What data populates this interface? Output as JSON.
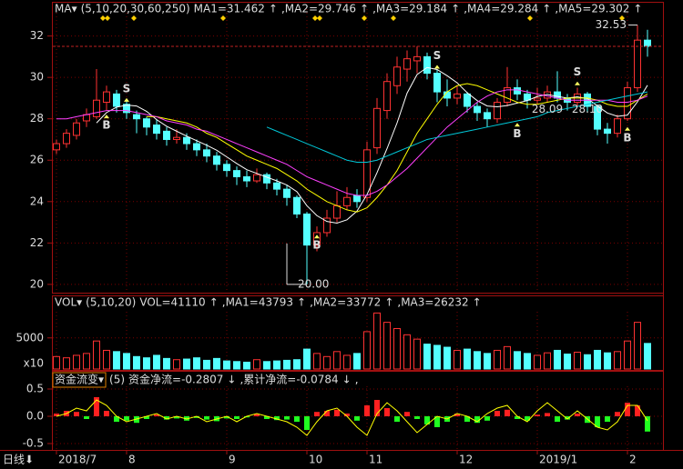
{
  "chart_data": {
    "type": "candlestick",
    "period_label": "日线⬇",
    "categories": [
      "2018/7",
      null,
      null,
      null,
      null,
      null,
      null,
      "8",
      null,
      null,
      null,
      null,
      null,
      null,
      null,
      null,
      null,
      "9",
      null,
      null,
      null,
      null,
      null,
      null,
      null,
      "10",
      null,
      null,
      null,
      null,
      null,
      "11",
      null,
      null,
      null,
      null,
      null,
      null,
      null,
      null,
      "12",
      null,
      null,
      null,
      null,
      null,
      null,
      null,
      "2019/1",
      null,
      null,
      null,
      null,
      null,
      null,
      null,
      null,
      "2",
      null,
      null
    ],
    "open": [
      26.5,
      26.8,
      27.2,
      27.9,
      28.1,
      28.8,
      29.2,
      28.7,
      28.2,
      28.0,
      27.7,
      27.4,
      27.0,
      27.1,
      26.8,
      26.5,
      26.2,
      25.8,
      25.5,
      25.2,
      25.0,
      25.3,
      24.9,
      24.6,
      24.2,
      23.4,
      21.9,
      22.5,
      23.2,
      23.8,
      24.3,
      24.2,
      26.6,
      28.4,
      29.6,
      30.4,
      30.8,
      31.0,
      30.2,
      29.3,
      29.0,
      29.2,
      28.6,
      28.3,
      28.0,
      28.8,
      29.5,
      29.2,
      28.9,
      29.0,
      29.3,
      29.0,
      28.8,
      29.2,
      28.6,
      27.5,
      27.3,
      28.0,
      29.5,
      31.8
    ],
    "high": [
      27.0,
      27.5,
      28.0,
      28.5,
      30.4,
      29.6,
      29.4,
      28.9,
      28.4,
      28.1,
      28.0,
      27.6,
      27.5,
      27.3,
      27.0,
      26.8,
      26.4,
      26.0,
      25.7,
      25.5,
      25.6,
      25.4,
      25.1,
      24.8,
      24.3,
      23.5,
      22.8,
      23.6,
      24.5,
      24.7,
      24.6,
      26.9,
      29.0,
      30.2,
      31.0,
      31.3,
      31.5,
      31.2,
      30.4,
      29.9,
      29.6,
      29.3,
      28.8,
      28.5,
      29.0,
      30.5,
      29.9,
      29.4,
      29.5,
      29.6,
      30.3,
      29.2,
      29.5,
      29.3,
      28.7,
      27.8,
      28.2,
      29.8,
      32.53,
      32.3
    ],
    "low": [
      26.3,
      26.6,
      27.0,
      27.6,
      28.0,
      28.4,
      28.3,
      28.0,
      27.3,
      27.2,
      27.0,
      26.7,
      26.8,
      26.5,
      26.2,
      25.9,
      25.5,
      25.2,
      24.8,
      24.7,
      24.9,
      24.6,
      24.3,
      23.8,
      23.2,
      20.0,
      21.6,
      22.3,
      23.0,
      23.6,
      23.7,
      24.0,
      26.3,
      28.0,
      29.2,
      29.8,
      30.2,
      29.9,
      28.8,
      28.6,
      28.7,
      28.3,
      27.9,
      27.6,
      27.8,
      28.6,
      28.9,
      28.5,
      28.7,
      28.8,
      28.8,
      28.4,
      28.6,
      28.3,
      27.2,
      26.8,
      27.1,
      27.9,
      29.3,
      31.0
    ],
    "close": [
      26.8,
      27.3,
      27.8,
      28.2,
      28.9,
      29.3,
      28.6,
      28.3,
      28.0,
      27.6,
      27.3,
      27.0,
      27.1,
      26.8,
      26.5,
      26.2,
      25.8,
      25.5,
      25.2,
      25.0,
      25.3,
      24.9,
      24.6,
      24.2,
      23.4,
      21.9,
      22.5,
      23.2,
      23.8,
      24.2,
      24.0,
      26.5,
      28.5,
      29.8,
      30.5,
      30.9,
      31.0,
      30.2,
      29.3,
      29.0,
      29.2,
      28.6,
      28.3,
      28.0,
      28.8,
      29.5,
      29.2,
      28.9,
      29.0,
      29.3,
      29.0,
      28.8,
      29.2,
      28.6,
      27.5,
      27.3,
      28.0,
      29.5,
      31.8,
      31.5
    ],
    "up_color": "#ff3232",
    "down_color": "#54ffff",
    "ylim": [
      19.6,
      33.3
    ],
    "yticks": [
      20,
      22,
      24,
      26,
      28,
      30,
      32
    ],
    "grid": true,
    "ma_lines": [
      {
        "name": "MA1",
        "color": "#ffffff",
        "values": [
          null,
          null,
          null,
          null,
          27.8,
          28.3,
          28.56,
          28.66,
          28.62,
          28.36,
          27.96,
          27.64,
          27.4,
          27.16,
          26.94,
          26.72,
          26.48,
          26.16,
          25.84,
          25.54,
          25.36,
          25.18,
          25.0,
          24.8,
          24.48,
          23.8,
          23.32,
          23.04,
          22.96,
          23.12,
          23.54,
          24.34,
          25.4,
          26.56,
          27.8,
          29.24,
          30.14,
          30.48,
          30.38,
          30.08,
          29.74,
          29.26,
          28.88,
          28.62,
          28.58,
          28.64,
          28.76,
          28.88,
          29.08,
          29.18,
          29.08,
          29.0,
          29.06,
          28.98,
          28.62,
          28.28,
          28.12,
          28.18,
          28.82,
          29.62
        ]
      },
      {
        "name": "MA2",
        "color": "#ffff00",
        "values": [
          null,
          null,
          null,
          null,
          null,
          null,
          null,
          null,
          null,
          28.1,
          28.1,
          28.0,
          27.9,
          27.8,
          27.6,
          27.3,
          27.1,
          26.8,
          26.5,
          26.2,
          26.0,
          25.8,
          25.6,
          25.3,
          25.0,
          24.6,
          24.3,
          24.0,
          23.8,
          23.6,
          23.5,
          23.7,
          24.2,
          24.8,
          25.5,
          26.4,
          27.3,
          28.0,
          28.7,
          29.3,
          29.6,
          29.7,
          29.6,
          29.4,
          29.2,
          29.0,
          28.8,
          28.7,
          28.7,
          28.8,
          28.9,
          29.0,
          29.0,
          29.0,
          28.9,
          28.7,
          28.6,
          28.6,
          28.9,
          29.2
        ]
      },
      {
        "name": "MA3",
        "color": "#ff40ff",
        "values": [
          28.0,
          28.0,
          28.1,
          28.2,
          28.3,
          28.4,
          28.4,
          28.4,
          28.3,
          28.2,
          28.1,
          27.9,
          27.8,
          27.7,
          27.5,
          27.4,
          27.2,
          27.0,
          26.8,
          26.6,
          26.4,
          26.2,
          26.0,
          25.8,
          25.5,
          25.2,
          25.0,
          24.8,
          24.6,
          24.4,
          24.3,
          24.3,
          24.5,
          24.8,
          25.2,
          25.6,
          26.1,
          26.6,
          27.1,
          27.6,
          28.0,
          28.4,
          28.8,
          29.1,
          29.3,
          29.4,
          29.4,
          29.3,
          29.2,
          29.1,
          29.0,
          28.9,
          28.9,
          28.9,
          28.9,
          28.9,
          28.8,
          28.8,
          28.9,
          29.1
        ]
      },
      {
        "name": "MA5",
        "color": "#00c8d8",
        "values": [
          null,
          null,
          null,
          null,
          null,
          null,
          null,
          null,
          null,
          null,
          null,
          null,
          null,
          null,
          null,
          null,
          null,
          null,
          null,
          null,
          null,
          27.6,
          27.4,
          27.2,
          27.0,
          26.8,
          26.6,
          26.4,
          26.2,
          26.0,
          25.9,
          25.9,
          26.0,
          26.2,
          26.4,
          26.6,
          26.8,
          27.0,
          27.1,
          27.2,
          27.3,
          27.4,
          27.5,
          27.6,
          27.7,
          27.8,
          27.9,
          28.0,
          28.1,
          28.3,
          28.4,
          28.5,
          28.6,
          28.7,
          28.8,
          28.9,
          29.0,
          29.1,
          29.2,
          29.3
        ]
      }
    ],
    "header": [
      {
        "text": "MA▾",
        "color": "#ffffff"
      },
      {
        "text": "(5,10,20,30,60,250)",
        "color": "#ffff00"
      },
      {
        "text": "MA1=31.462",
        "color": "#ffffff"
      },
      {
        "text": "↑",
        "color": "#ff3232"
      },
      {
        "text": ",MA2=29.746",
        "color": "#ffff00"
      },
      {
        "text": "↑",
        "color": "#ff3232"
      },
      {
        "text": ",MA3=29.184",
        "color": "#ff40ff"
      },
      {
        "text": "↑",
        "color": "#ff3232"
      },
      {
        "text": ",MA4=29.284",
        "color": "#ff5050"
      },
      {
        "text": "↑",
        "color": "#ff3232"
      },
      {
        "text": ",MA5=29.302",
        "color": "#00c8d8"
      },
      {
        "text": "↑",
        "color": "#ff3232"
      }
    ],
    "annotations": [
      {
        "label": "32.53",
        "value": 32.53,
        "index": 58
      },
      {
        "label": "20.00",
        "value": 20.0,
        "index": 25
      },
      {
        "label": "28.09",
        "value": 28.09,
        "index": 49
      },
      {
        "label": "28.10",
        "value": 28.1,
        "index": 53
      }
    ],
    "signals": [
      {
        "label": "B",
        "index": 5,
        "value": 28.2
      },
      {
        "label": "S",
        "index": 7,
        "value": 29.0
      },
      {
        "label": "B",
        "index": 26,
        "value": 22.4
      },
      {
        "label": "S",
        "index": 38,
        "value": 30.6
      },
      {
        "label": "B",
        "index": 46,
        "value": 27.8
      },
      {
        "label": "S",
        "index": 52,
        "value": 29.8
      },
      {
        "label": "B",
        "index": 57,
        "value": 27.6
      }
    ],
    "volume": {
      "values": [
        2000,
        1800,
        2200,
        2500,
        4500,
        3000,
        2800,
        2500,
        2000,
        1800,
        2200,
        1700,
        1500,
        1600,
        1800,
        1400,
        1700,
        1300,
        1200,
        1100,
        1500,
        1200,
        1300,
        1400,
        1500,
        3200,
        2500,
        2000,
        2800,
        2200,
        2500,
        6000,
        9000,
        7500,
        6500,
        5500,
        4800,
        4000,
        3800,
        3500,
        3000,
        3200,
        2800,
        2500,
        3000,
        3600,
        2800,
        2500,
        2200,
        2600,
        3000,
        2400,
        2700,
        2300,
        3000,
        2600,
        2800,
        4500,
        7500,
        4111
      ],
      "ylim": [
        0,
        9200
      ],
      "yticks": [
        5000
      ],
      "unit_label": "x10",
      "header": [
        {
          "text": "VOL▾",
          "color": "#ffffff"
        },
        {
          "text": "(5,10,20)",
          "color": "#ffff00"
        },
        {
          "text": "VOL=41110",
          "color": "#ffffff"
        },
        {
          "text": "↑",
          "color": "#ff3232"
        },
        {
          "text": ",MA1=43793",
          "color": "#ffff00"
        },
        {
          "text": "↑",
          "color": "#ff3232"
        },
        {
          "text": ",MA2=33772",
          "color": "#ff40ff"
        },
        {
          "text": "↑",
          "color": "#ff3232"
        },
        {
          "text": ",MA3=26232",
          "color": "#ff5050"
        },
        {
          "text": "↑",
          "color": "#ff3232"
        }
      ]
    },
    "flow": {
      "values": [
        0.05,
        0.1,
        0.08,
        -0.05,
        0.35,
        0.1,
        -0.1,
        -0.08,
        -0.12,
        -0.05,
        0.03,
        -0.06,
        -0.04,
        -0.08,
        -0.03,
        -0.06,
        -0.09,
        -0.04,
        -0.05,
        -0.02,
        0.04,
        -0.05,
        -0.07,
        -0.06,
        -0.1,
        -0.25,
        0.08,
        0.1,
        0.12,
        0.05,
        -0.08,
        0.2,
        0.3,
        0.15,
        -0.1,
        0.08,
        -0.05,
        -0.15,
        -0.2,
        -0.1,
        0.05,
        -0.1,
        -0.12,
        -0.08,
        0.1,
        0.12,
        -0.05,
        -0.08,
        0.03,
        0.06,
        -0.1,
        -0.06,
        0.05,
        -0.12,
        -0.2,
        -0.1,
        0.08,
        0.25,
        0.2,
        -0.28
      ],
      "line": [
        0.0,
        0.05,
        0.15,
        0.1,
        0.3,
        0.2,
        0.0,
        -0.1,
        -0.05,
        0.0,
        0.05,
        -0.05,
        0.0,
        -0.05,
        0.0,
        -0.1,
        -0.05,
        0.0,
        -0.1,
        0.0,
        0.05,
        0.0,
        -0.05,
        -0.1,
        -0.2,
        -0.35,
        -0.1,
        0.1,
        0.15,
        0.0,
        -0.2,
        -0.35,
        0.05,
        0.25,
        0.1,
        -0.1,
        -0.3,
        -0.15,
        0.0,
        -0.05,
        0.05,
        0.0,
        -0.1,
        0.05,
        0.15,
        0.2,
        0.0,
        -0.1,
        0.1,
        0.25,
        0.1,
        -0.05,
        0.1,
        -0.05,
        -0.2,
        -0.25,
        -0.1,
        0.2,
        0.2,
        -0.08
      ],
      "line_color": "#ffff00",
      "pos_color": "#ff2020",
      "neg_color": "#20ff20",
      "ylim": [
        -0.6,
        0.55
      ],
      "yticks": [
        0.5,
        {
          "value": 0,
          "label": "0.0"
        },
        -0.5
      ],
      "header": [
        {
          "text": "(5)",
          "color": "#dddddd"
        },
        {
          "text": "资金净流=-0.2807",
          "color": "#ffffff"
        },
        {
          "text": "↓",
          "color": "#00c8ff"
        },
        {
          "text": ",累计净流=-0.0784",
          "color": "#ffff00"
        },
        {
          "text": "↓",
          "color": "#00c8ff"
        },
        {
          "text": ",",
          "color": "#dddddd"
        }
      ],
      "name": "资金流变▾"
    }
  }
}
